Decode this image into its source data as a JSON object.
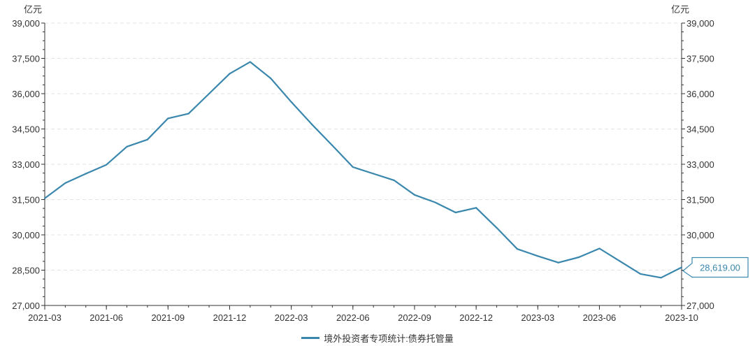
{
  "chart_data": {
    "type": "line",
    "unit_left": "亿元",
    "unit_right": "亿元",
    "ylim": [
      27000,
      39000
    ],
    "y_ticks": [
      "27,000",
      "28,500",
      "30,000",
      "31,500",
      "33,000",
      "34,500",
      "36,000",
      "37,500",
      "39,000"
    ],
    "y_tick_values": [
      27000,
      28500,
      30000,
      31500,
      33000,
      34500,
      36000,
      37500,
      39000
    ],
    "x_ticks": [
      "2021-03",
      "2021-06",
      "2021-09",
      "2021-12",
      "2022-03",
      "2022-06",
      "2022-09",
      "2022-12",
      "2023-03",
      "2023-06",
      "2023-10"
    ],
    "x": [
      "2021-03",
      "2021-04",
      "2021-05",
      "2021-06",
      "2021-07",
      "2021-08",
      "2021-09",
      "2021-10",
      "2021-11",
      "2021-12",
      "2022-01",
      "2022-02",
      "2022-03",
      "2022-04",
      "2022-05",
      "2022-06",
      "2022-07",
      "2022-08",
      "2022-09",
      "2022-10",
      "2022-11",
      "2022-12",
      "2023-01",
      "2023-02",
      "2023-03",
      "2023-04",
      "2023-05",
      "2023-06",
      "2023-07",
      "2023-08",
      "2023-09",
      "2023-10"
    ],
    "series": [
      {
        "name": "境外投资者专项统计:债券托管量",
        "color": "#3a87ad",
        "values": [
          31550,
          32200,
          32600,
          32980,
          33750,
          34050,
          34950,
          35150,
          36000,
          36850,
          37350,
          36650,
          35650,
          34700,
          33800,
          32880,
          32600,
          32320,
          31700,
          31380,
          30950,
          31150,
          30300,
          29400,
          29100,
          28820,
          29050,
          29420,
          28880,
          28340,
          28180,
          28619
        ]
      }
    ],
    "last_value_label": "28,619.00",
    "grid": true,
    "legend_position": "bottom-center"
  }
}
